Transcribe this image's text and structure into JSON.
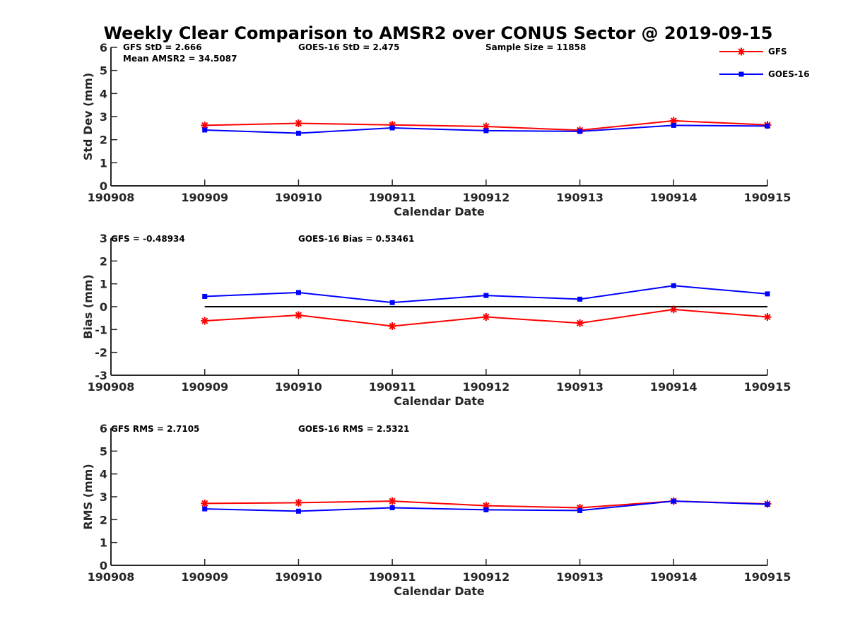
{
  "chart_data": {
    "type": "line",
    "title": "Weekly Clear Comparison to AMSR2 over CONUS Sector @ 2019-09-15",
    "legend": {
      "placement": "top-right",
      "entries": [
        {
          "name": "GFS",
          "color": "#ff0000",
          "marker": "asterisk"
        },
        {
          "name": "GOES-16",
          "color": "#0000ff",
          "marker": "square"
        }
      ]
    },
    "shared_x_ticks": [
      "190908",
      "190909",
      "190910",
      "190911",
      "190912",
      "190913",
      "190914",
      "190915"
    ],
    "shared_x_label": "Calendar Date",
    "colors": {
      "gfs": "#ff0000",
      "goes": "#0000ff",
      "zero_line": "#000000",
      "axis": "#262626"
    },
    "panels": [
      {
        "id": "stddev",
        "type": "line",
        "ylabel": "Std Dev (mm)",
        "ylim": [
          0,
          6
        ],
        "yticks": [
          "0",
          "1",
          "2",
          "3",
          "4",
          "5",
          "6"
        ],
        "xlabel": "Calendar Date",
        "x": [
          "190909",
          "190910",
          "190911",
          "190912",
          "190913",
          "190914",
          "190915"
        ],
        "series": [
          {
            "name": "GFS",
            "values": [
              2.62,
              2.71,
              2.64,
              2.57,
              2.41,
              2.82,
              2.64
            ]
          },
          {
            "name": "GOES-16",
            "values": [
              2.42,
              2.28,
              2.51,
              2.39,
              2.36,
              2.62,
              2.59
            ]
          }
        ],
        "annotations": [
          "GFS StD = 2.666",
          "Mean AMSR2 = 34.5087",
          "GOES-16 StD = 2.475",
          "Sample Size = 11858"
        ],
        "zero_line": false
      },
      {
        "id": "bias",
        "type": "line",
        "ylabel": "Bias (mm)",
        "ylim": [
          -3,
          3
        ],
        "yticks": [
          "-3",
          "-2",
          "-1",
          "0",
          "1",
          "2",
          "3"
        ],
        "xlabel": "Calendar Date",
        "x": [
          "190909",
          "190910",
          "190911",
          "190912",
          "190913",
          "190914",
          "190915"
        ],
        "series": [
          {
            "name": "GFS",
            "values": [
              -0.62,
              -0.37,
              -0.85,
              -0.45,
              -0.72,
              -0.12,
              -0.45
            ]
          },
          {
            "name": "GOES-16",
            "values": [
              0.45,
              0.62,
              0.18,
              0.49,
              0.33,
              0.92,
              0.56
            ]
          }
        ],
        "annotations": [
          "GFS = -0.48934",
          "GOES-16 Bias  = 0.53461"
        ],
        "zero_line": true
      },
      {
        "id": "rms",
        "type": "line",
        "ylabel": "RMS (mm)",
        "ylim": [
          0,
          6
        ],
        "yticks": [
          "0",
          "1",
          "2",
          "3",
          "4",
          "5",
          "6"
        ],
        "xlabel": "Calendar Date",
        "x": [
          "190909",
          "190910",
          "190911",
          "190912",
          "190913",
          "190914",
          "190915"
        ],
        "series": [
          {
            "name": "GFS",
            "values": [
              2.71,
              2.74,
              2.81,
              2.61,
              2.52,
              2.81,
              2.69
            ]
          },
          {
            "name": "GOES-16",
            "values": [
              2.47,
              2.37,
              2.52,
              2.43,
              2.4,
              2.81,
              2.67
            ]
          }
        ],
        "annotations": [
          "GFS RMS = 2.7105",
          "GOES-16 RMS = 2.5321"
        ],
        "zero_line": false
      }
    ]
  }
}
